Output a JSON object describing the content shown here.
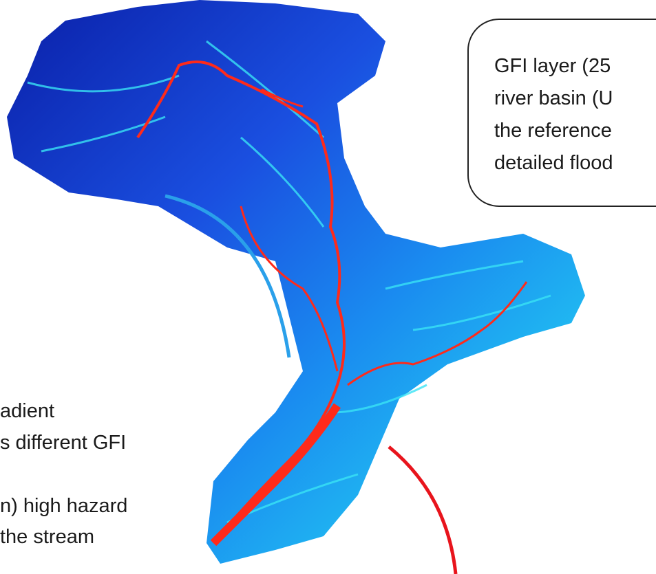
{
  "callout": {
    "lines": [
      "GFI layer (25",
      "river basin (U",
      "the reference",
      "detailed flood"
    ]
  },
  "left_text": {
    "lines": [
      "adient",
      "s different GFI",
      "n) high hazard",
      "the stream"
    ]
  }
}
